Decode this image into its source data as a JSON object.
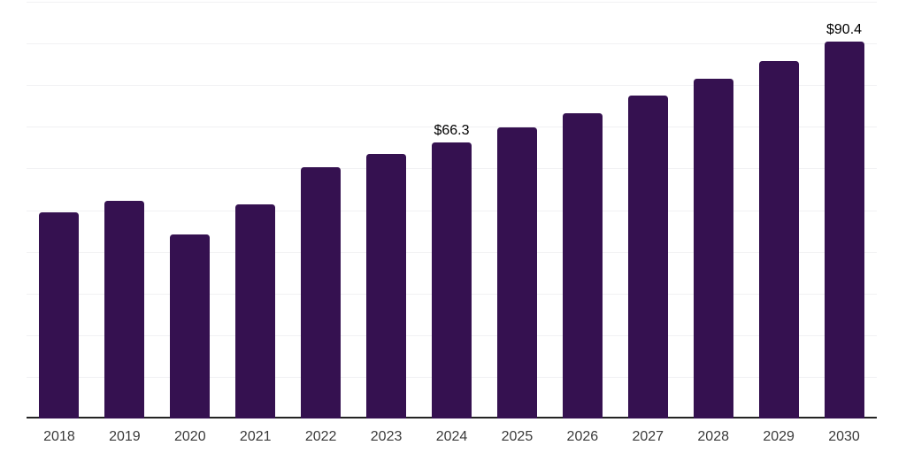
{
  "chart_data": {
    "type": "bar",
    "categories": [
      "2018",
      "2019",
      "2020",
      "2021",
      "2022",
      "2023",
      "2024",
      "2025",
      "2026",
      "2027",
      "2028",
      "2029",
      "2030"
    ],
    "values": [
      49.5,
      52.2,
      44.2,
      51.4,
      60.3,
      63.5,
      66.3,
      69.8,
      73.3,
      77.4,
      81.6,
      85.7,
      90.4
    ],
    "data_labels": {
      "2024": "$66.3",
      "2030": "$90.4"
    },
    "xlabel": "",
    "ylabel": "",
    "ylim": [
      0,
      100
    ],
    "grid_step": 10,
    "grid": "horizontal",
    "legend": "none",
    "colors": {
      "bar": "#351150",
      "axis": "#232323",
      "gridline": "#f1f1f3",
      "tick_label": "#3a3a3a",
      "value_label": "#000000",
      "background": "#ffffff"
    }
  }
}
